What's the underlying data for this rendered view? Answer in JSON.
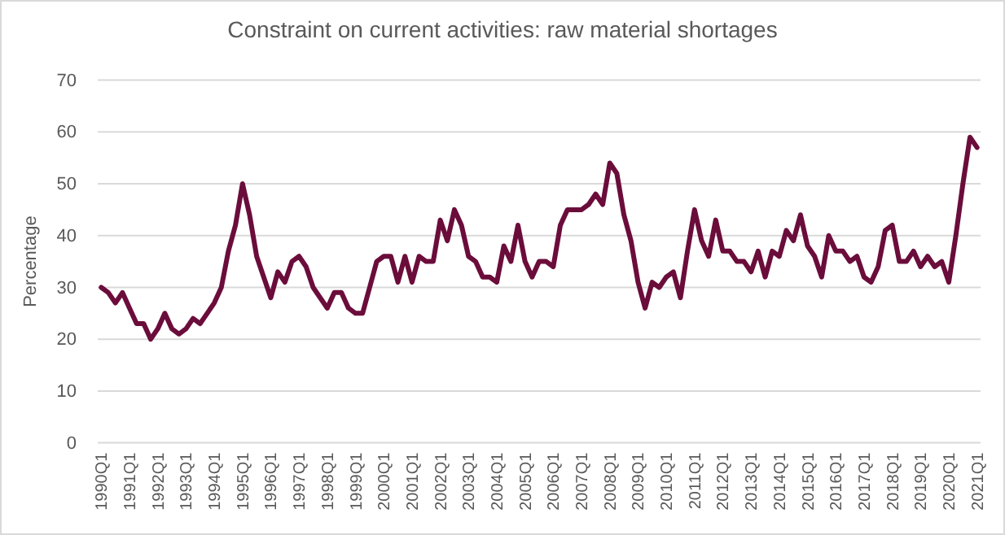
{
  "chart_data": {
    "type": "line",
    "title": "Constraint on current activities: raw material shortages",
    "ylabel": "Percentage",
    "categories": [
      "1990Q1",
      null,
      null,
      null,
      "1991Q1",
      null,
      null,
      null,
      "1992Q1",
      null,
      null,
      null,
      "1993Q1",
      null,
      null,
      null,
      "1994Q1",
      null,
      null,
      null,
      "1995Q1",
      null,
      null,
      null,
      "1996Q1",
      null,
      null,
      null,
      "1997Q1",
      null,
      null,
      null,
      "1998Q1",
      null,
      null,
      null,
      "1999Q1",
      null,
      null,
      null,
      "2000Q1",
      null,
      null,
      null,
      "2001Q1",
      null,
      null,
      null,
      "2002Q1",
      null,
      null,
      null,
      "2003Q1",
      null,
      null,
      null,
      "2004Q1",
      null,
      null,
      null,
      "2005Q1",
      null,
      null,
      null,
      "2006Q1",
      null,
      null,
      null,
      "2007Q1",
      null,
      null,
      null,
      "2008Q1",
      null,
      null,
      null,
      "2009Q1",
      null,
      null,
      null,
      "2010Q1",
      null,
      null,
      null,
      "2011Q1",
      null,
      null,
      null,
      "2012Q1",
      null,
      null,
      null,
      "2013Q1",
      null,
      null,
      null,
      "2014Q1",
      null,
      null,
      null,
      "2015Q1",
      null,
      null,
      null,
      "2016Q1",
      null,
      null,
      null,
      "2017Q1",
      null,
      null,
      null,
      "2018Q1",
      null,
      null,
      null,
      "2019Q1",
      null,
      null,
      null,
      "2020Q1",
      null,
      null,
      null,
      "2021Q1"
    ],
    "series": [
      {
        "color": "#6b0d3b",
        "values": [
          30,
          29,
          27,
          29,
          26,
          23,
          23,
          20,
          22,
          25,
          22,
          21,
          22,
          24,
          23,
          25,
          27,
          30,
          37,
          42,
          50,
          44,
          36,
          32,
          28,
          33,
          31,
          35,
          36,
          34,
          30,
          28,
          26,
          29,
          29,
          26,
          25,
          25,
          30,
          35,
          36,
          36,
          31,
          36,
          31,
          36,
          35,
          35,
          43,
          39,
          45,
          42,
          36,
          35,
          32,
          32,
          31,
          38,
          35,
          42,
          35,
          32,
          35,
          35,
          34,
          42,
          45,
          45,
          45,
          46,
          48,
          46,
          54,
          52,
          44,
          39,
          31,
          26,
          31,
          30,
          32,
          33,
          28,
          37,
          45,
          39,
          36,
          43,
          37,
          37,
          35,
          35,
          33,
          37,
          32,
          37,
          36,
          41,
          39,
          44,
          38,
          36,
          32,
          40,
          37,
          37,
          35,
          36,
          32,
          31,
          34,
          41,
          42,
          35,
          35,
          37,
          34,
          36,
          34,
          35,
          31,
          40,
          50,
          59,
          57
        ]
      }
    ],
    "ylim": [
      0,
      70
    ],
    "yticks": [
      0,
      10,
      20,
      30,
      40,
      50,
      60,
      70
    ],
    "grid": "y"
  }
}
